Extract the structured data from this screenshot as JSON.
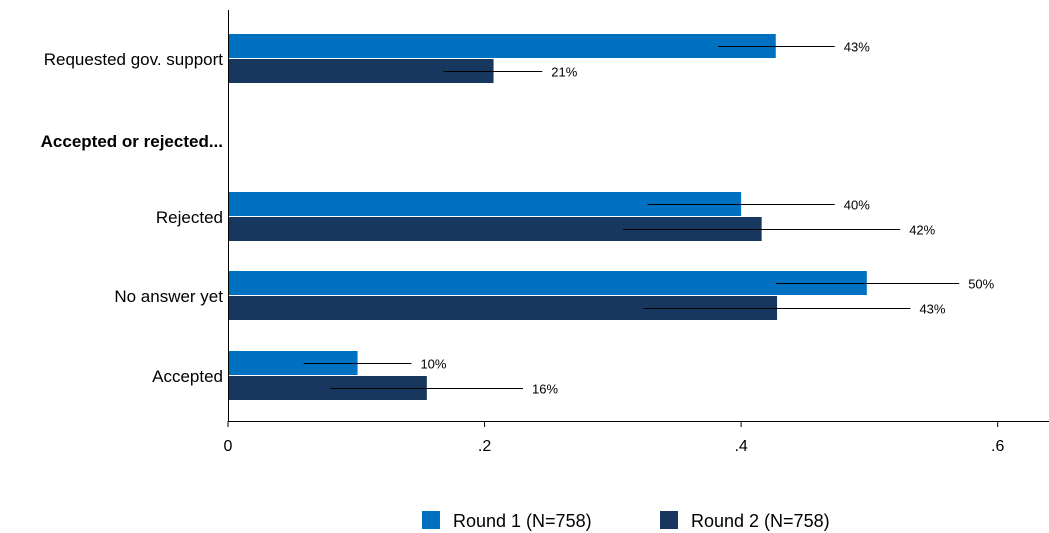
{
  "chart_data": {
    "type": "bar",
    "orientation": "horizontal",
    "categories": [
      "Requested gov. support",
      "Accepted or rejected...",
      "Rejected",
      "No answer yet",
      "Accepted"
    ],
    "heading_categories": [
      "Accepted or rejected..."
    ],
    "series": [
      {
        "name": "Round 1 (N=758)",
        "color": "#0070c0",
        "values": [
          0.427,
          null,
          0.4,
          0.498,
          0.101
        ],
        "labels": [
          "43%",
          "",
          "40%",
          "50%",
          "10%"
        ],
        "ci_low": [
          0.382,
          null,
          0.327,
          0.427,
          0.059
        ],
        "ci_high": [
          0.473,
          null,
          0.473,
          0.57,
          0.143
        ]
      },
      {
        "name": "Round 2 (N=758)",
        "color": "#17375e",
        "values": [
          0.207,
          null,
          0.416,
          0.428,
          0.155
        ],
        "labels": [
          "21%",
          "",
          "42%",
          "43%",
          "16%"
        ],
        "ci_low": [
          0.168,
          null,
          0.308,
          0.324,
          0.08
        ],
        "ci_high": [
          0.245,
          null,
          0.524,
          0.532,
          0.23
        ]
      }
    ],
    "xlim": [
      0,
      0.64
    ],
    "xticks": [
      0,
      0.2,
      0.4,
      0.6
    ],
    "xtick_labels": [
      "0",
      ".2",
      ".4",
      ".6"
    ],
    "title": "",
    "xlabel": "",
    "ylabel": "",
    "grid": false,
    "legend_position": "bottom-center",
    "error_bars": true
  }
}
